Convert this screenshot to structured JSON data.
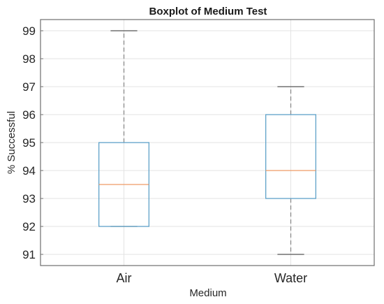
{
  "chart_data": {
    "type": "boxplot",
    "title": "Boxplot of Medium Test",
    "xlabel": "Medium",
    "ylabel": "% Successful",
    "categories": [
      "Air",
      "Water"
    ],
    "boxes": [
      {
        "name": "Air",
        "whisker_low": 92,
        "q1": 92,
        "median": 93.5,
        "q3": 95,
        "whisker_high": 99
      },
      {
        "name": "Water",
        "whisker_low": 91,
        "q1": 93,
        "median": 94,
        "q3": 96,
        "whisker_high": 97
      }
    ],
    "ylim": [
      90.6,
      99.4
    ],
    "yticks": [
      91,
      92,
      93,
      94,
      95,
      96,
      97,
      98,
      99
    ],
    "grid": true,
    "colors": {
      "box": "#5fa2c9",
      "median": "#ef9a66",
      "whisker": "#8a8a8a"
    }
  }
}
